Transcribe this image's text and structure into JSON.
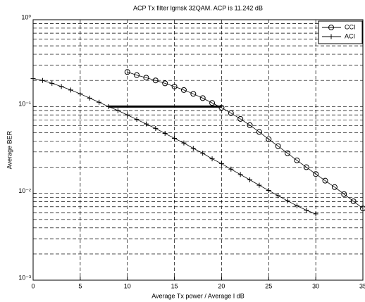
{
  "chart_data": {
    "type": "line",
    "title": "ACP Tx filter lgmsk 32QAM. ACP is 11.242 dB",
    "xlabel": "Average Tx power / Average I  dB",
    "ylabel": "Average BER",
    "xlim": [
      0,
      35
    ],
    "ylim": [
      0.001,
      1
    ],
    "yscale": "log",
    "grid": true,
    "legend": "upper right",
    "xticks": [
      0,
      5,
      10,
      15,
      20,
      25,
      30,
      35
    ],
    "yticks": [
      {
        "value": 0.001,
        "label": "10⁻³"
      },
      {
        "value": 0.01,
        "label": "10⁻²"
      },
      {
        "value": 0.1,
        "label": "10⁻¹"
      },
      {
        "value": 1,
        "label": "10⁰"
      }
    ],
    "minor_yticks": [
      0.002,
      0.003,
      0.004,
      0.005,
      0.006,
      0.007,
      0.008,
      0.009,
      0.02,
      0.03,
      0.04,
      0.05,
      0.06,
      0.07,
      0.08,
      0.09,
      0.2,
      0.3,
      0.4,
      0.5,
      0.6,
      0.7,
      0.8,
      0.9
    ],
    "series": [
      {
        "name": "CCI",
        "color": "#000000",
        "marker": "o",
        "x": [
          10,
          11,
          12,
          13,
          14,
          15,
          16,
          17,
          18,
          19,
          20,
          21,
          22,
          23,
          24,
          25,
          26,
          27,
          28,
          29,
          30,
          31,
          32,
          33,
          34,
          35
        ],
        "values": [
          0.25,
          0.23,
          0.215,
          0.2,
          0.185,
          0.17,
          0.155,
          0.14,
          0.125,
          0.11,
          0.097,
          0.084,
          0.072,
          0.061,
          0.051,
          0.042,
          0.035,
          0.029,
          0.024,
          0.02,
          0.0167,
          0.014,
          0.0118,
          0.0098,
          0.0081,
          0.0067
        ]
      },
      {
        "name": "ACI",
        "color": "#000000",
        "marker": "+",
        "x": [
          0,
          1,
          2,
          3,
          4,
          5,
          6,
          7,
          8,
          9,
          10,
          11,
          12,
          13,
          14,
          15,
          16,
          17,
          18,
          19,
          20,
          21,
          22,
          23,
          24,
          25,
          26,
          27,
          28,
          29,
          30
        ],
        "values": [
          0.21,
          0.2,
          0.185,
          0.17,
          0.155,
          0.14,
          0.125,
          0.112,
          0.1,
          0.09,
          0.08,
          0.071,
          0.063,
          0.056,
          0.049,
          0.043,
          0.038,
          0.033,
          0.029,
          0.025,
          0.022,
          0.019,
          0.0165,
          0.0143,
          0.0124,
          0.0108,
          0.0094,
          0.0082,
          0.0072,
          0.0064,
          0.0058
        ]
      }
    ],
    "acp_line": {
      "x": [
        8,
        20
      ],
      "y": 0.1,
      "color": "#000000"
    }
  }
}
